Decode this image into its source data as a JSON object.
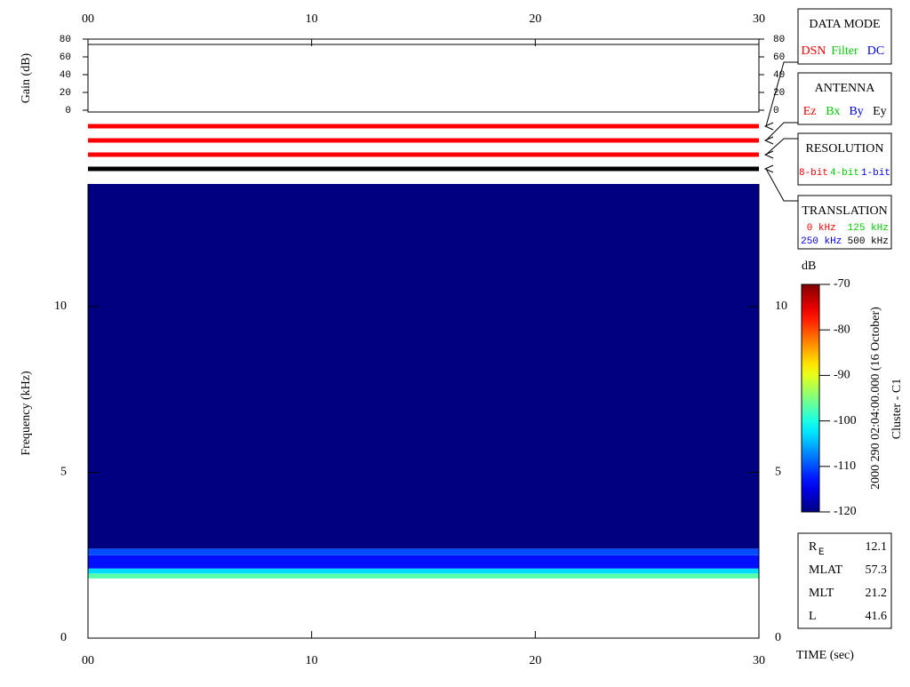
{
  "chart_data": {
    "type": "spectrogram",
    "x_label": "TIME (sec)",
    "y_label": "Frequency (kHz)",
    "xlim": [
      0,
      30
    ],
    "xticks": [
      {
        "value": 0,
        "label": "00"
      },
      10,
      20,
      30
    ],
    "ylim": [
      0,
      13.7
    ],
    "yticks": [
      0,
      5,
      10
    ],
    "ybins": [
      1.8,
      1.95,
      2.1,
      2.5,
      2.7,
      13.7
    ],
    "values": [
      -97,
      -103,
      -113,
      -110,
      -120
    ],
    "colorbar": {
      "label": "dB",
      "clim": [
        -120,
        -70
      ],
      "ticks": [
        -70,
        -80,
        -90,
        -100,
        -110,
        -120
      ]
    },
    "gain": {
      "label": "Gain (dB)",
      "ylim": [
        0,
        80
      ],
      "yticks": [
        0,
        20,
        40,
        60,
        80
      ]
    },
    "status_lines": [
      "#ff0000",
      "#ff0000",
      "#ff0000",
      "#000000"
    ],
    "legend_boxes": [
      {
        "title": "DATA MODE",
        "items": [
          {
            "name": "DSN",
            "color": "#ff0000"
          },
          {
            "name": "Filter",
            "color": "#00cc00"
          },
          {
            "name": "DC",
            "color": "#0000ff"
          }
        ]
      },
      {
        "title": "ANTENNA",
        "items": [
          {
            "name": "Ez",
            "color": "#ff0000"
          },
          {
            "name": "Bx",
            "color": "#00cc00"
          },
          {
            "name": "By",
            "color": "#0000ff"
          },
          {
            "name": "Ey",
            "color": "#000000"
          }
        ]
      },
      {
        "title": "RESOLUTION",
        "items": [
          {
            "name": "8-bit",
            "color": "#ff0000"
          },
          {
            "name": "4-bit",
            "color": "#00cc00"
          },
          {
            "name": "1-bit",
            "color": "#0000ff"
          }
        ]
      },
      {
        "title": "TRANSLATION",
        "items": [
          {
            "name": "0 kHz",
            "color": "#ff0000"
          },
          {
            "name": "125 kHz",
            "color": "#00cc00"
          },
          {
            "name": "250 kHz",
            "color": "#0000ff"
          },
          {
            "name": "500 kHz",
            "color": "#000000"
          }
        ]
      }
    ],
    "annotations": [
      "2000 290 02:04:00.000 (16 October)",
      "Cluster - C1"
    ],
    "orbit": [
      {
        "label": "R",
        "sub": "E",
        "value": 12.1
      },
      {
        "label": "MLAT",
        "value": 57.3
      },
      {
        "label": "MLT",
        "value": 21.2
      },
      {
        "label": "L",
        "value": 41.6
      }
    ]
  }
}
